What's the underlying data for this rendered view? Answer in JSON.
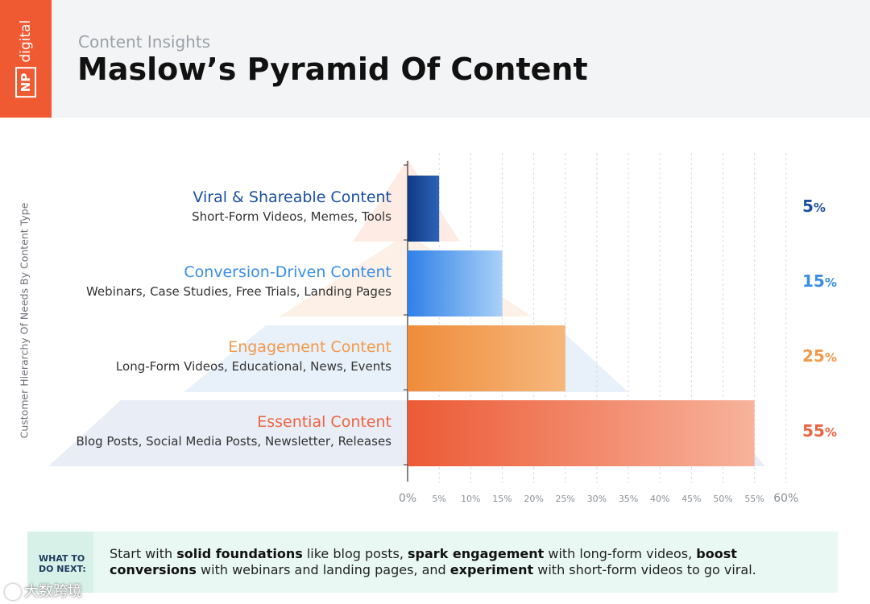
{
  "header": {
    "logo_np": "NP",
    "logo_word": "digital",
    "subtitle": "Content Insights",
    "title": "Maslow’s Pyramid Of Content"
  },
  "chart_data": {
    "type": "bar",
    "orientation": "horizontal",
    "ylabel": "Customer Hierarchy Of Needs By Content Type",
    "xlim": [
      0,
      60
    ],
    "x_ticks": [
      "0%",
      "5%",
      "10%",
      "15%",
      "20%",
      "25%",
      "30%",
      "35%",
      "40%",
      "45%",
      "50%",
      "55%",
      "60%"
    ],
    "grid": true,
    "categories": [
      {
        "title": "Viral & Shareable Content",
        "subtitle": "Short-Form Videos, Memes, Tools",
        "value": 5,
        "label_num": "5",
        "label_sym": "%",
        "color": "#1a4fa0"
      },
      {
        "title": "Conversion-Driven Content",
        "subtitle": "Webinars, Case Studies, Free Trials, Landing Pages",
        "value": 15,
        "label_num": "15",
        "label_sym": "%",
        "color": "#3a8ee6"
      },
      {
        "title": "Engagement Content",
        "subtitle": "Long-Form Videos, Educational, News, Events",
        "value": 25,
        "label_num": "25",
        "label_sym": "%",
        "color": "#f2994a"
      },
      {
        "title": "Essential Content",
        "subtitle": "Blog Posts, Social Media Posts, Newsletter, Releases",
        "value": 55,
        "label_num": "55",
        "label_sym": "%",
        "color": "#ee6340"
      }
    ]
  },
  "next_steps": {
    "label_line1": "WHAT TO",
    "label_line2": "DO NEXT:",
    "parts": [
      {
        "text": "Start with ",
        "bold": false
      },
      {
        "text": "solid foundations",
        "bold": true
      },
      {
        "text": " like blog posts, ",
        "bold": false
      },
      {
        "text": "spark engagement",
        "bold": true
      },
      {
        "text": " with long-form videos, ",
        "bold": false
      },
      {
        "text": "boost conversions",
        "bold": true
      },
      {
        "text": " with webinars and landing pages, and ",
        "bold": false
      },
      {
        "text": "experiment",
        "bold": true
      },
      {
        "text": " with short-form videos to go viral.",
        "bold": false
      }
    ]
  },
  "watermark": {
    "text": "大数跨境"
  }
}
